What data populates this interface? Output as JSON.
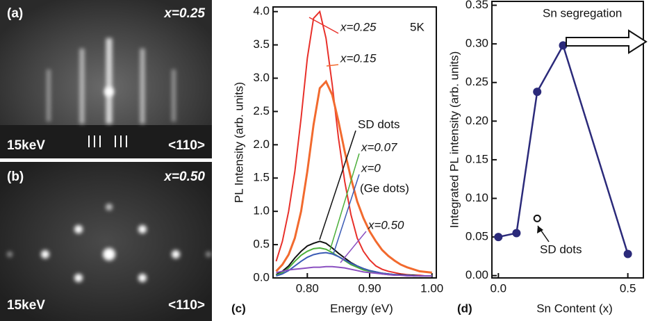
{
  "panels": [
    {
      "label": "(a)",
      "composition": "x=0.25",
      "energy": "15keV",
      "direction": "<110>"
    },
    {
      "label": "(b)",
      "composition": "x=0.50",
      "energy": "15keV",
      "direction": "<110>"
    }
  ],
  "chart_data": [
    {
      "type": "line",
      "panel_label": "(c)",
      "xlabel": "Energy (eV)",
      "ylabel": "PL Intensity (arb. units)",
      "annotations": [
        "5K",
        "(Ge dots)"
      ],
      "x": [
        0.75,
        0.76,
        0.77,
        0.78,
        0.79,
        0.8,
        0.81,
        0.82,
        0.83,
        0.84,
        0.85,
        0.86,
        0.87,
        0.88,
        0.89,
        0.9,
        0.91,
        0.92,
        0.93,
        0.94,
        0.95,
        0.96,
        0.97,
        0.98,
        0.99,
        1.0
      ],
      "series": [
        {
          "name": "x=0.25",
          "color": "#e8302a",
          "values": [
            0.25,
            0.55,
            1.0,
            1.6,
            2.4,
            3.3,
            3.9,
            4.0,
            3.6,
            2.9,
            2.1,
            1.45,
            0.95,
            0.6,
            0.4,
            0.27,
            0.18,
            0.13,
            0.1,
            0.08,
            0.06,
            0.05,
            0.04,
            0.04,
            0.03,
            0.03
          ]
        },
        {
          "name": "x=0.15",
          "color": "#f26a2e",
          "values": [
            0.1,
            0.2,
            0.35,
            0.6,
            1.0,
            1.6,
            2.3,
            2.85,
            2.95,
            2.75,
            2.35,
            1.9,
            1.5,
            1.15,
            0.9,
            0.7,
            0.55,
            0.42,
            0.33,
            0.26,
            0.2,
            0.16,
            0.13,
            0.1,
            0.09,
            0.08
          ]
        },
        {
          "name": "SD dots",
          "color": "#111111",
          "values": [
            0.05,
            0.1,
            0.18,
            0.3,
            0.4,
            0.48,
            0.52,
            0.55,
            0.52,
            0.45,
            0.37,
            0.3,
            0.23,
            0.18,
            0.14,
            0.11,
            0.09,
            0.07,
            0.06,
            0.05,
            0.05,
            0.04,
            0.04,
            0.03,
            0.03,
            0.03
          ]
        },
        {
          "name": "x=0.07",
          "color": "#4caf3a",
          "values": [
            0.04,
            0.08,
            0.15,
            0.25,
            0.34,
            0.4,
            0.44,
            0.45,
            0.43,
            0.38,
            0.32,
            0.26,
            0.2,
            0.16,
            0.12,
            0.1,
            0.08,
            0.06,
            0.05,
            0.05,
            0.04,
            0.04,
            0.03,
            0.03,
            0.03,
            0.03
          ]
        },
        {
          "name": "x=0",
          "color": "#3b5bb5",
          "values": [
            0.03,
            0.06,
            0.11,
            0.18,
            0.25,
            0.31,
            0.35,
            0.37,
            0.38,
            0.36,
            0.32,
            0.27,
            0.22,
            0.18,
            0.14,
            0.11,
            0.09,
            0.07,
            0.06,
            0.05,
            0.04,
            0.04,
            0.03,
            0.03,
            0.03,
            0.03
          ]
        },
        {
          "name": "x=0.50",
          "color": "#8a4fc0",
          "values": [
            0.08,
            0.1,
            0.12,
            0.13,
            0.14,
            0.15,
            0.16,
            0.16,
            0.17,
            0.17,
            0.16,
            0.15,
            0.13,
            0.11,
            0.09,
            0.08,
            0.07,
            0.06,
            0.05,
            0.04,
            0.04,
            0.03,
            0.03,
            0.03,
            0.03,
            0.03
          ]
        }
      ],
      "xlim": [
        0.745,
        1.007
      ],
      "ylim": [
        0,
        4.07
      ],
      "xticks": [
        {
          "value": 0.8,
          "label": "0.80"
        },
        {
          "value": 0.9,
          "label": "0.90"
        },
        {
          "value": 1.0,
          "label": "1.00"
        }
      ],
      "yticks": [
        {
          "value": 0,
          "label": "0.0"
        },
        {
          "value": 0.5,
          "label": "0.5"
        },
        {
          "value": 1,
          "label": "1.0"
        },
        {
          "value": 1.5,
          "label": "1.5"
        },
        {
          "value": 2,
          "label": "2.0"
        },
        {
          "value": 2.5,
          "label": "2.5"
        },
        {
          "value": 3,
          "label": "3.0"
        },
        {
          "value": 3.5,
          "label": "3.5"
        },
        {
          "value": 4,
          "label": "4.0"
        }
      ]
    },
    {
      "type": "line",
      "panel_label": "(d)",
      "xlabel": "Sn Content (x)",
      "ylabel": "Integrated PL intensity (arb. units)",
      "annotations": [
        "Sn segregation"
      ],
      "series": [
        {
          "color": "#2b2a7a",
          "x": [
            0,
            0.07,
            0.15,
            0.25,
            0.5
          ],
          "values": [
            0.05,
            0.055,
            0.238,
            0.298,
            0.028
          ]
        },
        {
          "name": "SD dots",
          "color": "#111111",
          "x": [
            0.15
          ],
          "values": [
            0.074
          ]
        }
      ],
      "xlim": [
        -0.025,
        0.56
      ],
      "ylim": [
        -0.003,
        0.355
      ],
      "xticks": [
        {
          "value": 0,
          "label": "0.0"
        },
        {
          "value": 0.5,
          "label": "0.5"
        }
      ],
      "yticks": [
        {
          "value": 0,
          "label": "0.00"
        },
        {
          "value": 0.05,
          "label": "0.05"
        },
        {
          "value": 0.1,
          "label": "0.10"
        },
        {
          "value": 0.15,
          "label": "0.15"
        },
        {
          "value": 0.2,
          "label": "0.20"
        },
        {
          "value": 0.25,
          "label": "0.25"
        },
        {
          "value": 0.3,
          "label": "0.30"
        },
        {
          "value": 0.35,
          "label": "0.35"
        }
      ]
    }
  ]
}
